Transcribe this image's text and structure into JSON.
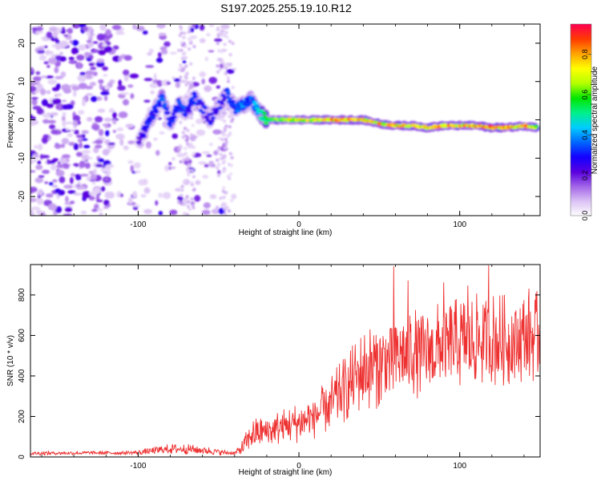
{
  "figure_title": "S197.2025.255.19.10.R12",
  "chart_data": [
    {
      "type": "heatmap",
      "title": "S197.2025.255.19.10.R12",
      "xlabel": "Height of straight line (km)",
      "ylabel": "Frequency (Hz)",
      "xlim": [
        -167,
        150
      ],
      "ylim": [
        -25,
        25
      ],
      "xticks": [
        -100,
        0,
        100
      ],
      "yticks": [
        -20,
        -10,
        0,
        10,
        20
      ],
      "colorbar": {
        "label": "Normalized spectral amplitude",
        "range": [
          0,
          0.95
        ],
        "ticks": [
          "0.0",
          "0.2",
          "0.4",
          "0.6",
          "0.8"
        ],
        "colors": [
          "#ffffff",
          "#dcc3f5",
          "#a366e8",
          "#5a00e0",
          "#1400ff",
          "#0066ff",
          "#00ccff",
          "#00f08c",
          "#00e600",
          "#b4ff00",
          "#ffff00",
          "#ffa500",
          "#ff3c00",
          "#ff0050"
        ]
      },
      "noise_region_km": [
        -167,
        -40
      ],
      "main_signal_trace": [
        {
          "km": -100,
          "hz": -6,
          "amp": 0.22
        },
        {
          "km": -95,
          "hz": -2,
          "amp": 0.3
        },
        {
          "km": -90,
          "hz": 2,
          "amp": 0.32
        },
        {
          "km": -85,
          "hz": 6,
          "amp": 0.36
        },
        {
          "km": -80,
          "hz": -1,
          "amp": 0.3
        },
        {
          "km": -75,
          "hz": 4,
          "amp": 0.34
        },
        {
          "km": -70,
          "hz": 2,
          "amp": 0.32
        },
        {
          "km": -65,
          "hz": 6,
          "amp": 0.34
        },
        {
          "km": -55,
          "hz": 0,
          "amp": 0.3
        },
        {
          "km": -45,
          "hz": 7,
          "amp": 0.32
        },
        {
          "km": -40,
          "hz": 3,
          "amp": 0.34
        },
        {
          "km": -35,
          "hz": 4,
          "amp": 0.4
        },
        {
          "km": -30,
          "hz": 5,
          "amp": 0.38
        },
        {
          "km": -25,
          "hz": 2,
          "amp": 0.45
        },
        {
          "km": -20,
          "hz": 0,
          "amp": 0.6
        },
        {
          "km": -10,
          "hz": 0,
          "amp": 0.7
        },
        {
          "km": 0,
          "hz": 0,
          "amp": 0.72
        },
        {
          "km": 10,
          "hz": 0,
          "amp": 0.75
        },
        {
          "km": 20,
          "hz": 0,
          "amp": 0.8
        },
        {
          "km": 30,
          "hz": 0,
          "amp": 0.85
        },
        {
          "km": 40,
          "hz": 0,
          "amp": 0.8
        },
        {
          "km": 50,
          "hz": -1,
          "amp": 0.78
        },
        {
          "km": 60,
          "hz": -1.5,
          "amp": 0.82
        },
        {
          "km": 70,
          "hz": -1.5,
          "amp": 0.8
        },
        {
          "km": 80,
          "hz": -2,
          "amp": 0.86
        },
        {
          "km": 90,
          "hz": -1.5,
          "amp": 0.84
        },
        {
          "km": 100,
          "hz": -1.5,
          "amp": 0.8
        },
        {
          "km": 110,
          "hz": -1.5,
          "amp": 0.82
        },
        {
          "km": 120,
          "hz": -2,
          "amp": 0.86
        },
        {
          "km": 130,
          "hz": -2,
          "amp": 0.84
        },
        {
          "km": 140,
          "hz": -1.5,
          "amp": 0.82
        },
        {
          "km": 148,
          "hz": -2,
          "amp": 0.78
        }
      ]
    },
    {
      "type": "line",
      "xlabel": "Height of straight line (km)",
      "ylabel": "SNR (10 * v/v)",
      "xlim": [
        -167,
        150
      ],
      "ylim": [
        0,
        950
      ],
      "xticks": [
        -100,
        0,
        100
      ],
      "yticks": [
        0,
        200,
        400,
        600,
        800
      ],
      "line_color": "#ee3030",
      "series": [
        {
          "name": "SNR",
          "x": [
            -167,
            -150,
            -130,
            -110,
            -100,
            -90,
            -80,
            -70,
            -60,
            -50,
            -40,
            -35,
            -30,
            -25,
            -20,
            -10,
            0,
            10,
            20,
            30,
            40,
            50,
            60,
            70,
            80,
            90,
            100,
            110,
            120,
            130,
            140,
            150
          ],
          "y": [
            18,
            19,
            20,
            20,
            22,
            30,
            40,
            38,
            33,
            25,
            18,
            45,
            110,
            120,
            125,
            150,
            170,
            200,
            265,
            345,
            430,
            460,
            490,
            520,
            520,
            540,
            560,
            575,
            580,
            570,
            585,
            600
          ],
          "spread": [
            12,
            10,
            10,
            10,
            12,
            20,
            25,
            25,
            22,
            16,
            10,
            40,
            70,
            80,
            80,
            90,
            100,
            110,
            140,
            170,
            200,
            220,
            230,
            230,
            230,
            230,
            230,
            230,
            240,
            230,
            230,
            220
          ],
          "peaks": [
            {
              "x": 59,
              "y": 940
            },
            {
              "x": 118,
              "y": 945
            },
            {
              "x": 68,
              "y": 870
            },
            {
              "x": 90,
              "y": 860
            },
            {
              "x": 143,
              "y": 830
            },
            {
              "x": 105,
              "y": 845
            }
          ]
        }
      ]
    }
  ]
}
